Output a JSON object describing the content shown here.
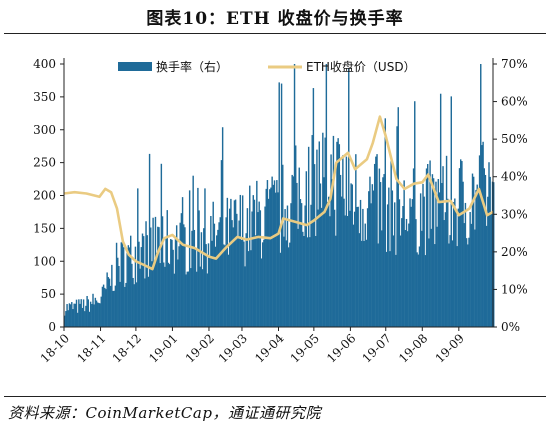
{
  "title": "图表10：ETH 收盘价与换手率",
  "source": "资料来源：CoinMarketCap，通证通研究院",
  "colors": {
    "bar": "#1f6b99",
    "line": "#eacb82",
    "axis": "#222222"
  },
  "chart_data": {
    "type": "bar+line",
    "x_tick_labels": [
      "18-10",
      "18-11",
      "18-12",
      "19-01",
      "19-02",
      "19-03",
      "19-04",
      "19-05",
      "19-06",
      "19-07",
      "19-08",
      "19-09"
    ],
    "x_range": [
      "2018-10-01",
      "2019-09-30"
    ],
    "left_axis": {
      "ylim": [
        0,
        400
      ],
      "ticks": [
        "0",
        "50",
        "100",
        "150",
        "200",
        "250",
        "300",
        "350",
        "400"
      ]
    },
    "right_axis": {
      "ylim": [
        0,
        70
      ],
      "ticks": [
        "0%",
        "10%",
        "20%",
        "30%",
        "40%",
        "50%",
        "60%",
        "70%"
      ]
    },
    "legend": {
      "placement": "top",
      "entries": [
        "换手率（右）",
        "ETH收盘价（USD）"
      ]
    },
    "series": [
      {
        "name": "换手率（右）",
        "type": "bar",
        "axis": "right",
        "values_by_month": {
          "x": [
            "2018-10-01",
            "2018-10-15",
            "2018-11-01",
            "2018-11-15",
            "2018-12-01",
            "2018-12-15",
            "2019-01-01",
            "2019-01-15",
            "2019-02-01",
            "2019-02-15",
            "2019-03-01",
            "2019-03-15",
            "2019-04-01",
            "2019-04-15",
            "2019-05-01",
            "2019-05-15",
            "2019-06-01",
            "2019-06-15",
            "2019-07-01",
            "2019-07-15",
            "2019-08-01",
            "2019-08-15",
            "2019-09-01",
            "2019-09-15",
            "2019-09-30"
          ],
          "y": [
            5.5,
            6,
            8,
            18,
            21,
            24,
            25,
            24,
            26,
            27,
            29,
            31,
            33,
            38,
            42,
            44,
            39,
            36,
            35,
            33,
            34,
            35,
            36,
            38,
            40
          ]
        }
      },
      {
        "name": "ETH收盘价（USD）",
        "type": "line",
        "axis": "left",
        "x": [
          "2018-10-01",
          "2018-10-10",
          "2018-10-20",
          "2018-10-31",
          "2018-11-05",
          "2018-11-10",
          "2018-11-15",
          "2018-11-20",
          "2018-11-25",
          "2018-12-01",
          "2018-12-07",
          "2018-12-15",
          "2018-12-20",
          "2018-12-25",
          "2019-01-01",
          "2019-01-10",
          "2019-01-20",
          "2019-02-01",
          "2019-02-07",
          "2019-02-15",
          "2019-02-25",
          "2019-03-05",
          "2019-03-15",
          "2019-03-25",
          "2019-04-01",
          "2019-04-05",
          "2019-04-15",
          "2019-04-25",
          "2019-05-01",
          "2019-05-10",
          "2019-05-15",
          "2019-05-20",
          "2019-05-30",
          "2019-06-05",
          "2019-06-15",
          "2019-06-20",
          "2019-06-26",
          "2019-07-01",
          "2019-07-10",
          "2019-07-17",
          "2019-07-25",
          "2019-08-01",
          "2019-08-06",
          "2019-08-15",
          "2019-08-25",
          "2019-09-01",
          "2019-09-10",
          "2019-09-18",
          "2019-09-25",
          "2019-09-30"
        ],
        "y": [
          203,
          205,
          203,
          198,
          210,
          205,
          180,
          130,
          110,
          100,
          95,
          88,
          115,
          135,
          140,
          125,
          120,
          107,
          104,
          120,
          137,
          133,
          137,
          135,
          142,
          165,
          160,
          155,
          162,
          175,
          195,
          250,
          265,
          240,
          255,
          280,
          320,
          290,
          225,
          210,
          218,
          220,
          232,
          190,
          192,
          170,
          180,
          210,
          170,
          175
        ]
      }
    ]
  }
}
